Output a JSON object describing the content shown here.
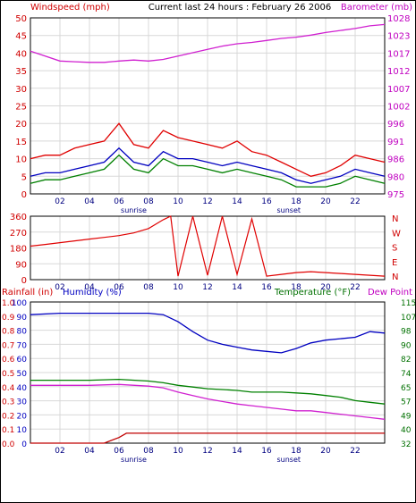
{
  "chart_data": [
    {
      "type": "line",
      "title": "Current last 24 hours : February 26 2006",
      "left_axis_label": "Windspeed (mph)",
      "right_axis_label": "Barometer (mb)",
      "left_ticks": [
        "0",
        "5",
        "10",
        "15",
        "20",
        "25",
        "30",
        "35",
        "40",
        "45",
        "50"
      ],
      "right_ticks": [
        "975",
        "980",
        "986",
        "991",
        "996",
        "1002",
        "1007",
        "1012",
        "1017",
        "1023",
        "1028"
      ],
      "ylim_left": [
        0,
        50
      ],
      "ylim_right": [
        975,
        1028
      ],
      "x_ticks": [
        "02",
        "04",
        "06",
        "08",
        "10",
        "12",
        "14",
        "16",
        "18",
        "20",
        "22"
      ],
      "x_range_hours": [
        0,
        24
      ],
      "annotations": [
        "sunrise",
        "sunset"
      ],
      "grid": true,
      "series": [
        {
          "axis": "right",
          "color": "#d020d0",
          "x": [
            0,
            1,
            2,
            3,
            4,
            5,
            6,
            7,
            8,
            9,
            10,
            11,
            12,
            13,
            14,
            15,
            16,
            17,
            18,
            19,
            20,
            21,
            22,
            23,
            24
          ],
          "values": [
            1018,
            1016.5,
            1015,
            1014.8,
            1014.6,
            1014.6,
            1015,
            1015.3,
            1015,
            1015.5,
            1016.5,
            1017.5,
            1018.5,
            1019.5,
            1020.2,
            1020.6,
            1021.2,
            1021.8,
            1022.2,
            1022.8,
            1023.6,
            1024.2,
            1024.8,
            1025.6,
            1026
          ]
        },
        {
          "axis": "left",
          "color": "#e00000",
          "x": [
            0,
            1,
            2,
            3,
            4,
            5,
            6,
            7,
            8,
            9,
            10,
            11,
            12,
            13,
            14,
            15,
            16,
            17,
            18,
            19,
            20,
            21,
            22,
            23,
            24
          ],
          "values": [
            10,
            11,
            11,
            13,
            14,
            15,
            20,
            14,
            13,
            18,
            16,
            15,
            14,
            13,
            15,
            12,
            11,
            9,
            7,
            5,
            6,
            8,
            11,
            10,
            9
          ]
        },
        {
          "axis": "left",
          "color": "#0000c0",
          "x": [
            0,
            1,
            2,
            3,
            4,
            5,
            6,
            7,
            8,
            9,
            10,
            11,
            12,
            13,
            14,
            15,
            16,
            17,
            18,
            19,
            20,
            21,
            22,
            23,
            24
          ],
          "values": [
            5,
            6,
            6,
            7,
            8,
            9,
            13,
            9,
            8,
            12,
            10,
            10,
            9,
            8,
            9,
            8,
            7,
            6,
            4,
            3,
            4,
            5,
            7,
            6,
            5
          ]
        },
        {
          "axis": "left",
          "color": "#008000",
          "x": [
            0,
            1,
            2,
            3,
            4,
            5,
            6,
            7,
            8,
            9,
            10,
            11,
            12,
            13,
            14,
            15,
            16,
            17,
            18,
            19,
            20,
            21,
            22,
            23,
            24
          ],
          "values": [
            3,
            4,
            4,
            5,
            6,
            7,
            11,
            7,
            6,
            10,
            8,
            8,
            7,
            6,
            7,
            6,
            5,
            4,
            2,
            2,
            2,
            3,
            5,
            4,
            3
          ]
        }
      ]
    },
    {
      "type": "line",
      "right_axis_labels": [
        "N",
        "W",
        "S",
        "E",
        "N"
      ],
      "left_ticks": [
        "0",
        "90",
        "180",
        "270",
        "360"
      ],
      "ylim": [
        0,
        360
      ],
      "x_ticks": [
        "02",
        "04",
        "06",
        "08",
        "10",
        "12",
        "14",
        "16",
        "18",
        "20",
        "22"
      ],
      "grid": true,
      "series": [
        {
          "color": "#e00000",
          "x": [
            0,
            1,
            2,
            3,
            4,
            5,
            6,
            7,
            8,
            9,
            9.5,
            10,
            11,
            12,
            13,
            14,
            15,
            16,
            17,
            18,
            19,
            20,
            21,
            22,
            23,
            24
          ],
          "values": [
            190,
            200,
            210,
            220,
            230,
            240,
            250,
            265,
            290,
            340,
            360,
            20,
            360,
            25,
            360,
            30,
            345,
            20,
            30,
            40,
            45,
            40,
            35,
            30,
            25,
            20
          ]
        }
      ]
    },
    {
      "type": "line",
      "labels_left": [
        "Rainfall (in)",
        "Humidity (%)"
      ],
      "labels_right": [
        "Temperature (°F)",
        "Dew Point"
      ],
      "rain_ticks": [
        "0.0",
        "0.1",
        "0.2",
        "0.3",
        "0.4",
        "0.5",
        "0.6",
        "0.7",
        "0.8",
        "0.9",
        "1.0"
      ],
      "humidity_ticks": [
        "0",
        "10",
        "20",
        "30",
        "40",
        "50",
        "60",
        "70",
        "80",
        "90",
        "100"
      ],
      "temp_ticks": [
        "32",
        "40",
        "49",
        "57",
        "65",
        "74",
        "82",
        "90",
        "98",
        "107",
        "115"
      ],
      "x_ticks": [
        "02",
        "04",
        "06",
        "08",
        "10",
        "12",
        "14",
        "16",
        "18",
        "20",
        "22"
      ],
      "annotations": [
        "sunrise",
        "sunset"
      ],
      "grid": true,
      "series": [
        {
          "label": "Humidity (%)",
          "axis": "humidity",
          "color": "#0000c0",
          "x": [
            0,
            2,
            4,
            6,
            8,
            9,
            10,
            11,
            12,
            13,
            14,
            15,
            16,
            17,
            18,
            19,
            20,
            21,
            22,
            23,
            24
          ],
          "values": [
            91,
            92,
            92,
            92,
            92,
            91,
            86,
            79,
            73,
            70,
            68,
            66,
            65,
            64,
            67,
            71,
            73,
            74,
            75,
            79,
            78
          ]
        },
        {
          "label": "Temperature (°F)",
          "axis": "temp",
          "color": "#008000",
          "x": [
            0,
            2,
            4,
            6,
            8,
            9,
            10,
            11,
            12,
            13,
            14,
            15,
            16,
            17,
            18,
            19,
            20,
            21,
            22,
            23,
            24
          ],
          "values": [
            69,
            69,
            69,
            69.5,
            68.5,
            67.5,
            66,
            65,
            64,
            63.5,
            63,
            62,
            62,
            62,
            61.5,
            61,
            60,
            59,
            57,
            56,
            55
          ]
        },
        {
          "label": "Dew Point",
          "axis": "temp",
          "color": "#d020d0",
          "x": [
            0,
            2,
            4,
            6,
            8,
            9,
            10,
            11,
            12,
            13,
            14,
            15,
            16,
            17,
            18,
            19,
            20,
            21,
            22,
            23,
            24
          ],
          "values": [
            66,
            66,
            66,
            66.5,
            65.5,
            64.5,
            62,
            60,
            58,
            56.5,
            55,
            54,
            53,
            52,
            51,
            51,
            50,
            49,
            48,
            47,
            46
          ]
        },
        {
          "label": "Rainfall (in)",
          "axis": "rain",
          "color": "#c00000",
          "x": [
            0,
            5,
            6,
            6.5,
            7,
            12,
            18,
            24
          ],
          "values": [
            0,
            0,
            0.04,
            0.07,
            0.07,
            0.07,
            0.07,
            0.07
          ]
        }
      ]
    }
  ]
}
